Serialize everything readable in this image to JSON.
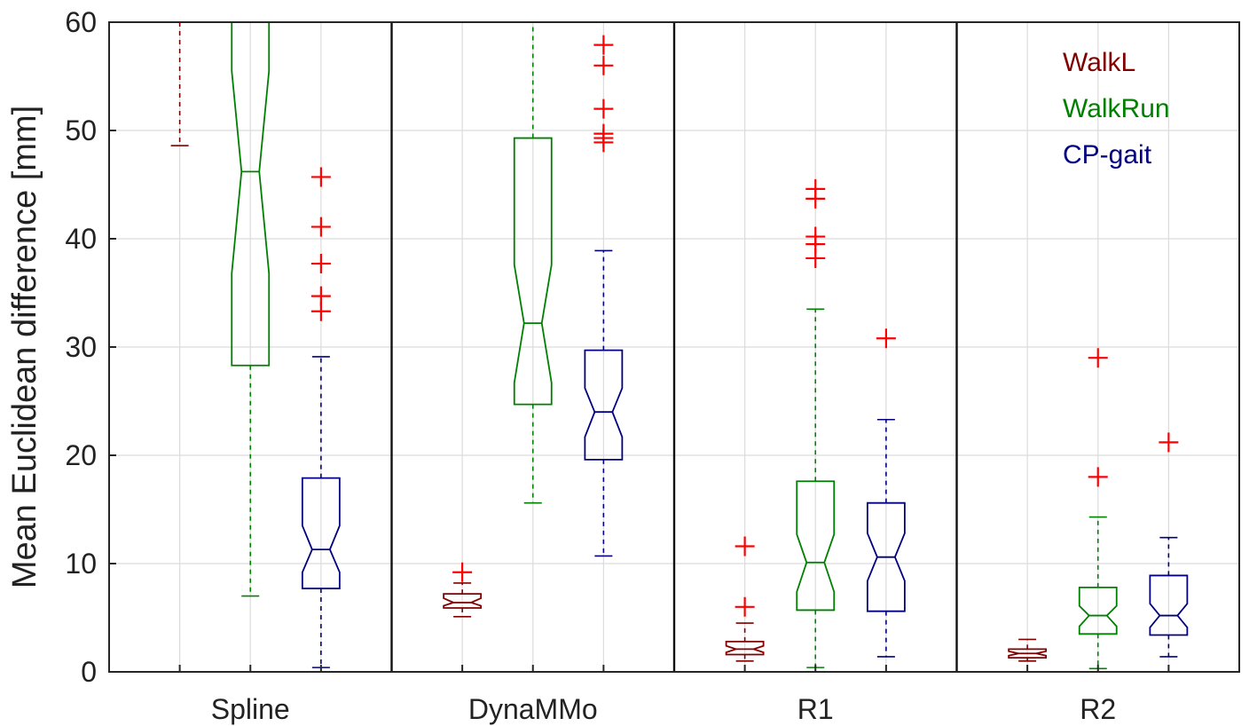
{
  "chart_data": {
    "type": "box",
    "ylabel": "Mean Euclidean difference [mm]",
    "xlabel": "",
    "title": "",
    "ylim": [
      0,
      60
    ],
    "yticks": [
      0,
      10,
      20,
      30,
      40,
      50,
      60
    ],
    "grid": true,
    "notched": true,
    "legend_placement": "top-right",
    "groups": [
      "Spline",
      "DynaMMo",
      "R1",
      "R2"
    ],
    "series": [
      {
        "name": "WalkL",
        "color": "#800000"
      },
      {
        "name": "WalkRun",
        "color": "#008000"
      },
      {
        "name": "CP-gait",
        "color": "#000080"
      }
    ],
    "outlier_color": "#ff0000",
    "boxes": [
      [
        {
          "whisker_low": 48.6,
          "q1": 61,
          "notch_low": 61,
          "median": 61,
          "notch_high": 61,
          "q3": 61,
          "whisker_high": 61,
          "outliers": []
        },
        {
          "whisker_low": 7.0,
          "q1": 28.3,
          "notch_low": 36.8,
          "median": 46.2,
          "notch_high": 55.5,
          "q3": 61,
          "whisker_high": 61,
          "outliers": []
        },
        {
          "whisker_low": 0.4,
          "q1": 7.7,
          "notch_low": 9.2,
          "median": 11.3,
          "notch_high": 13.5,
          "q3": 17.9,
          "whisker_high": 29.1,
          "outliers": [
            33.3,
            34.7,
            37.7,
            41.1,
            45.7
          ]
        }
      ],
      [
        {
          "whisker_low": 5.1,
          "q1": 5.9,
          "notch_low": 6.1,
          "median": 6.4,
          "notch_high": 6.8,
          "q3": 7.2,
          "whisker_high": 8.2,
          "outliers": [
            9.2
          ]
        },
        {
          "whisker_low": 15.6,
          "q1": 24.7,
          "notch_low": 26.7,
          "median": 32.2,
          "notch_high": 37.6,
          "q3": 49.3,
          "whisker_high": 60,
          "outliers": []
        },
        {
          "whisker_low": 10.7,
          "q1": 19.6,
          "notch_low": 21.7,
          "median": 24.0,
          "notch_high": 26.2,
          "q3": 29.7,
          "whisker_high": 38.9,
          "outliers": [
            48.9,
            49.3,
            49.7,
            52.0,
            56.0,
            57.9
          ]
        }
      ],
      [
        {
          "whisker_low": 1.0,
          "q1": 1.6,
          "notch_low": 1.8,
          "median": 2.1,
          "notch_high": 2.4,
          "q3": 2.8,
          "whisker_high": 4.5,
          "outliers": [
            6.0,
            11.6
          ]
        },
        {
          "whisker_low": 0.4,
          "q1": 5.7,
          "notch_low": 7.4,
          "median": 10.1,
          "notch_high": 12.7,
          "q3": 17.6,
          "whisker_high": 33.5,
          "outliers": [
            38.2,
            39.5,
            40.2,
            43.7,
            44.6
          ]
        },
        {
          "whisker_low": 1.4,
          "q1": 5.6,
          "notch_low": 8.4,
          "median": 10.6,
          "notch_high": 12.8,
          "q3": 15.6,
          "whisker_high": 23.3,
          "outliers": [
            30.8
          ]
        }
      ],
      [
        {
          "whisker_low": 1.0,
          "q1": 1.3,
          "notch_low": 1.5,
          "median": 1.7,
          "notch_high": 1.9,
          "q3": 2.1,
          "whisker_high": 3.0,
          "outliers": []
        },
        {
          "whisker_low": 0.3,
          "q1": 3.5,
          "notch_low": 4.2,
          "median": 5.2,
          "notch_high": 6.1,
          "q3": 7.8,
          "whisker_high": 14.3,
          "outliers": [
            18.0,
            29.0
          ]
        },
        {
          "whisker_low": 1.4,
          "q1": 3.4,
          "notch_low": 4.1,
          "median": 5.2,
          "notch_high": 6.3,
          "q3": 8.9,
          "whisker_high": 12.4,
          "outliers": [
            21.2
          ]
        }
      ]
    ]
  }
}
